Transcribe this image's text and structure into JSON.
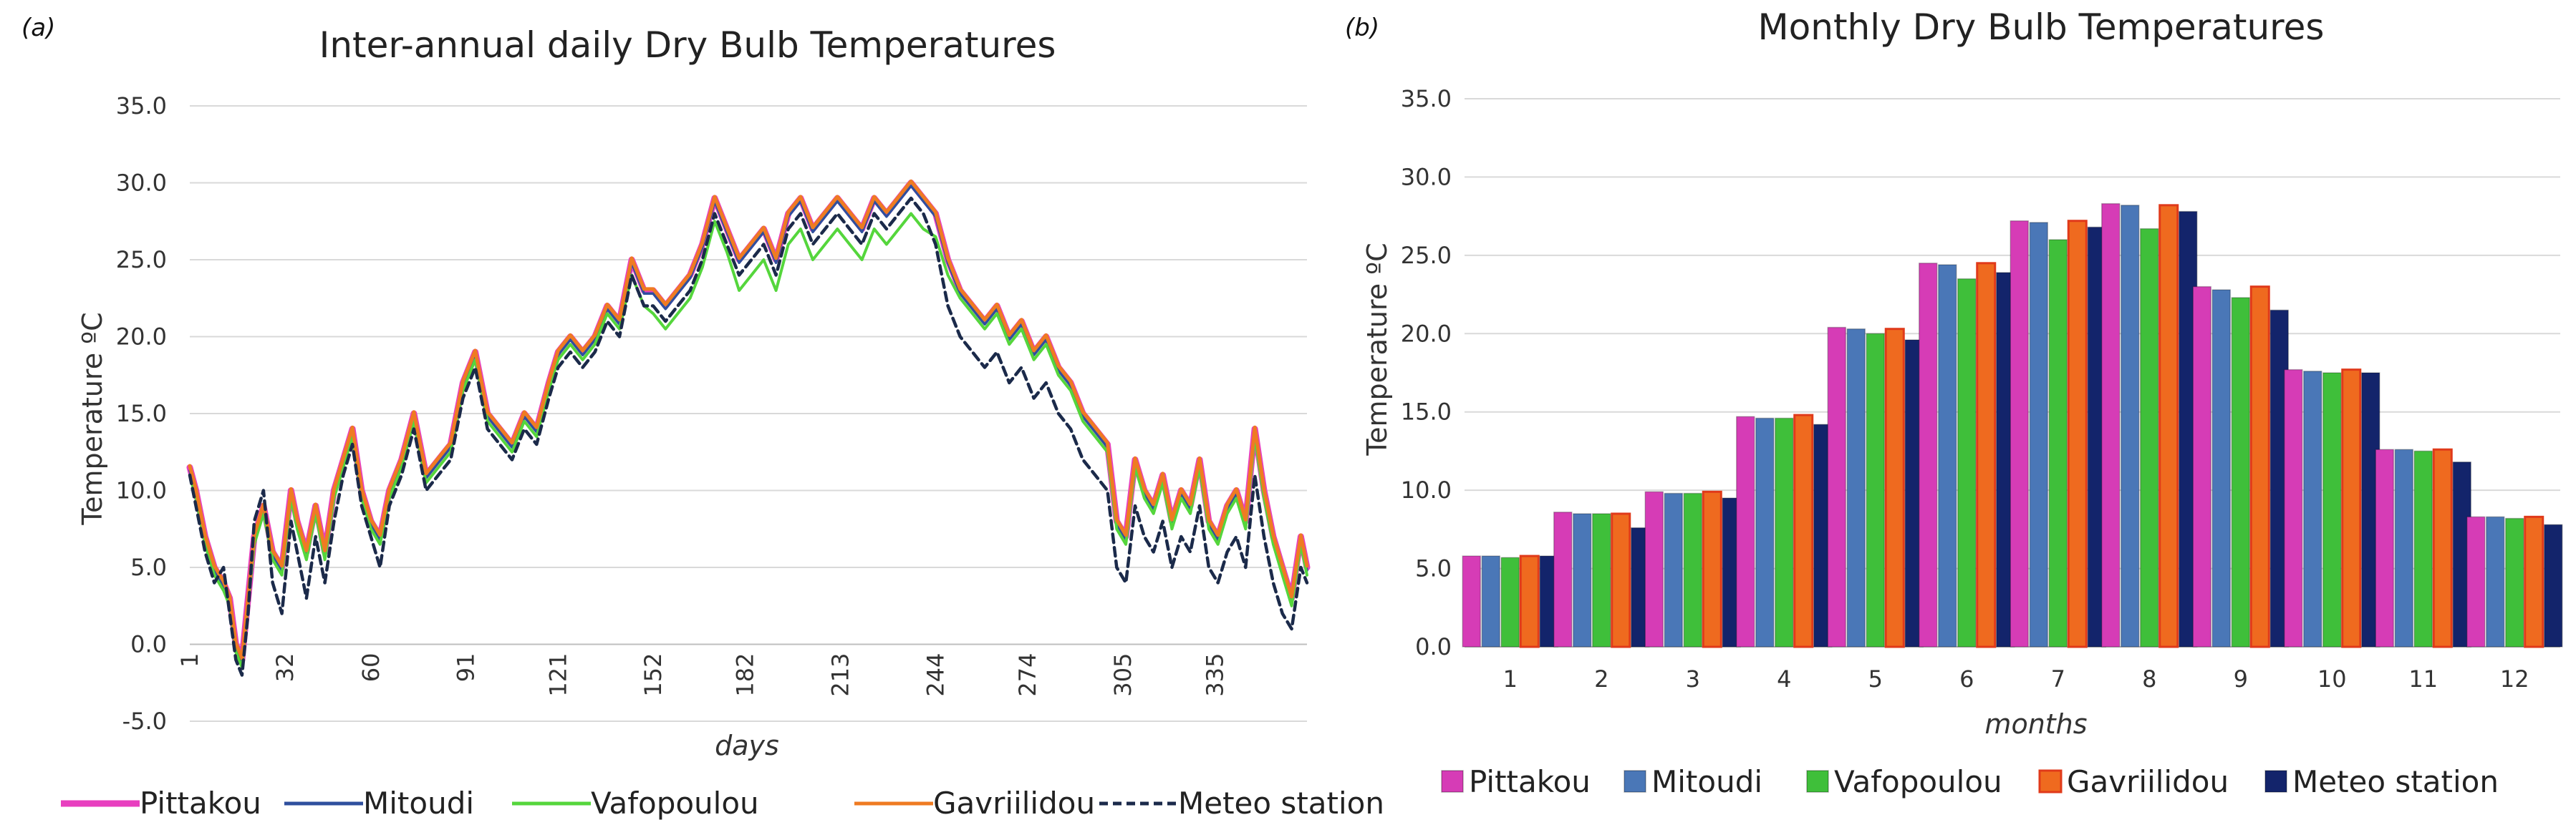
{
  "chart_data": [
    {
      "panel": "(a)",
      "type": "line",
      "title": "Inter-annual daily Dry Bulb Temperatures",
      "xlabel": "days",
      "ylabel": "Temperature ºC",
      "xlim": [
        1,
        365
      ],
      "ylim": [
        -5,
        35
      ],
      "yticks": [
        "-5.0",
        "0.0",
        "5.0",
        "10.0",
        "15.0",
        "20.0",
        "25.0",
        "30.0",
        "35.0"
      ],
      "xticks": [
        "1",
        "32",
        "60",
        "91",
        "121",
        "152",
        "182",
        "213",
        "244",
        "274",
        "305",
        "335"
      ],
      "grid": true,
      "legend": "bottom",
      "x": [
        1,
        3,
        6,
        9,
        12,
        14,
        16,
        18,
        20,
        22,
        25,
        28,
        31,
        34,
        36,
        39,
        42,
        45,
        48,
        51,
        54,
        57,
        60,
        63,
        66,
        70,
        74,
        78,
        82,
        86,
        90,
        94,
        98,
        102,
        106,
        110,
        114,
        118,
        121,
        125,
        129,
        133,
        137,
        141,
        145,
        149,
        152,
        156,
        160,
        164,
        168,
        172,
        176,
        180,
        184,
        188,
        192,
        196,
        200,
        204,
        208,
        212,
        216,
        220,
        224,
        228,
        232,
        236,
        240,
        244,
        248,
        252,
        256,
        260,
        264,
        268,
        272,
        276,
        280,
        284,
        288,
        292,
        296,
        300,
        303,
        306,
        309,
        312,
        315,
        318,
        321,
        324,
        327,
        330,
        333,
        336,
        339,
        342,
        345,
        348,
        351,
        354,
        357,
        360,
        363,
        365
      ],
      "series": [
        {
          "name": "Pittakou",
          "color": "#e83fbf",
          "values": [
            11.5,
            10,
            7,
            5,
            4,
            3,
            0,
            -1,
            3,
            7,
            9,
            6,
            5,
            10,
            8,
            6,
            9,
            6,
            10,
            12,
            14,
            10,
            8,
            7,
            10,
            12,
            15,
            11,
            12,
            13,
            17,
            19,
            15,
            14,
            13,
            15,
            14,
            17,
            19,
            20,
            19,
            20,
            22,
            21,
            25,
            23,
            23,
            22,
            23,
            24,
            26,
            29,
            27,
            25,
            26,
            27,
            25,
            28,
            29,
            27,
            28,
            29,
            28,
            27,
            29,
            28,
            29,
            30,
            29,
            28,
            25,
            23,
            22,
            21,
            22,
            20,
            21,
            19,
            20,
            18,
            17,
            15,
            14,
            13,
            8,
            7,
            12,
            10,
            9,
            11,
            8,
            10,
            9,
            12,
            8,
            7,
            9,
            10,
            8,
            14,
            10,
            7,
            5,
            3,
            7,
            5
          ]
        },
        {
          "name": "Mitoudi",
          "color": "#2f4f9e",
          "values": [
            11.3,
            9.8,
            6.8,
            4.8,
            3.8,
            2.8,
            -0.2,
            -1.2,
            2.8,
            6.8,
            8.8,
            5.8,
            4.8,
            9.8,
            7.8,
            5.8,
            8.8,
            5.8,
            9.8,
            11.8,
            13.8,
            9.8,
            7.8,
            6.8,
            9.8,
            11.8,
            14.8,
            10.8,
            11.8,
            12.8,
            16.8,
            18.8,
            14.8,
            13.8,
            12.8,
            14.8,
            13.8,
            16.8,
            18.8,
            19.8,
            18.8,
            19.8,
            21.8,
            20.8,
            24.8,
            22.8,
            22.8,
            21.8,
            22.8,
            23.8,
            25.8,
            28.8,
            26.8,
            24.8,
            25.8,
            26.8,
            24.8,
            27.8,
            28.8,
            26.8,
            27.8,
            28.8,
            27.8,
            26.8,
            28.8,
            27.8,
            28.8,
            29.8,
            28.8,
            27.8,
            24.8,
            22.8,
            21.8,
            20.8,
            21.8,
            19.8,
            20.8,
            18.8,
            19.8,
            17.8,
            16.8,
            14.8,
            13.8,
            12.8,
            7.8,
            6.8,
            11.8,
            9.8,
            8.8,
            10.8,
            7.8,
            9.8,
            8.8,
            11.8,
            7.8,
            6.8,
            8.8,
            9.8,
            7.8,
            13.8,
            9.8,
            6.8,
            4.8,
            2.8,
            6.8,
            4.8
          ]
        },
        {
          "name": "Vafopoulou",
          "color": "#55d63c",
          "values": [
            11,
            9.5,
            6.5,
            4.5,
            3.5,
            2.5,
            -0.5,
            -1.5,
            2.5,
            6.5,
            8.5,
            5.5,
            4.5,
            9.5,
            7.5,
            5.5,
            8.5,
            5.5,
            9.5,
            11.5,
            13.5,
            9.5,
            7.5,
            6.5,
            9.5,
            11.5,
            14.5,
            10.5,
            11.5,
            12.5,
            16.5,
            18.5,
            14.5,
            13.5,
            12.5,
            14.5,
            13.5,
            16.5,
            18.5,
            19.5,
            18.5,
            19.5,
            21.5,
            20.5,
            24,
            22,
            21.5,
            20.5,
            21.5,
            22.5,
            24.5,
            27.5,
            25.5,
            23,
            24,
            25,
            23,
            26,
            27,
            25,
            26,
            27,
            26,
            25,
            27,
            26,
            27,
            28,
            27,
            26.5,
            24,
            22.5,
            21.5,
            20.5,
            21.5,
            19.5,
            20.5,
            18.5,
            19.5,
            17.5,
            16.5,
            14.5,
            13.5,
            12.5,
            7.5,
            6.5,
            11.5,
            9.5,
            8.5,
            10.5,
            7.5,
            9.5,
            8.5,
            11.5,
            7.5,
            6.5,
            8.5,
            9.5,
            7.5,
            13.5,
            9.5,
            6.5,
            4.5,
            2.5,
            6.5,
            4.5
          ]
        },
        {
          "name": "Gavriilidou",
          "color": "#ef7b22",
          "values": [
            11.6,
            10.1,
            7.1,
            5.1,
            4.1,
            3.1,
            0.1,
            -0.9,
            3.1,
            7.1,
            9.1,
            6.1,
            5.1,
            10.1,
            8.1,
            6.1,
            9.1,
            6.1,
            10.1,
            12.1,
            14.1,
            10.1,
            8.1,
            7.1,
            10.1,
            12.1,
            15.1,
            11.1,
            12.1,
            13.1,
            17.1,
            19.1,
            15.1,
            14.1,
            13.1,
            15.1,
            14.1,
            17.1,
            19.1,
            20.1,
            19.1,
            20.1,
            22.1,
            21.1,
            25.1,
            23.1,
            23.1,
            22.1,
            23.1,
            24.1,
            26.1,
            29.1,
            27.1,
            25.1,
            26.1,
            27.1,
            25.1,
            28.1,
            29.1,
            27.1,
            28.1,
            29.1,
            28.1,
            27.1,
            29.1,
            28.1,
            29.1,
            30.1,
            29.1,
            28.1,
            25.1,
            23.1,
            22.1,
            21.1,
            22.1,
            20.1,
            21.1,
            19.1,
            20.1,
            18.1,
            17.1,
            15.1,
            14.1,
            13.1,
            8.1,
            7.1,
            12.1,
            10.1,
            9.1,
            11.1,
            8.1,
            10.1,
            9.1,
            12.1,
            8.1,
            7.1,
            9.1,
            10.1,
            8.1,
            14.1,
            10.1,
            7.1,
            5.1,
            3.1,
            7.1,
            5.1
          ]
        },
        {
          "name": "Meteo station",
          "color": "#1b2a4a",
          "dashed": true,
          "values": [
            11,
            9,
            6,
            4,
            5,
            2,
            -1,
            -2,
            2,
            8,
            10,
            4,
            2,
            8,
            6,
            3,
            7,
            4,
            8,
            11,
            13,
            9,
            7,
            5,
            9,
            11,
            14,
            10,
            11,
            12,
            16,
            18,
            14,
            13,
            12,
            14,
            13,
            16,
            18,
            19,
            18,
            19,
            21,
            20,
            24,
            22,
            22,
            21,
            22,
            23,
            25,
            28,
            26,
            24,
            25,
            26,
            24,
            27,
            28,
            26,
            27,
            28,
            27,
            26,
            28,
            27,
            28,
            29,
            28,
            26,
            22,
            20,
            19,
            18,
            19,
            17,
            18,
            16,
            17,
            15,
            14,
            12,
            11,
            10,
            5,
            4,
            9,
            7,
            6,
            8,
            5,
            7,
            6,
            9,
            5,
            4,
            6,
            7,
            5,
            11,
            7,
            4,
            2,
            1,
            5,
            4
          ]
        }
      ]
    },
    {
      "panel": "(b)",
      "type": "bar",
      "title": "Monthly Dry Bulb Temperatures",
      "xlabel": "months",
      "ylabel": "Temperature ºC",
      "ylim": [
        0,
        35
      ],
      "yticks": [
        "0.0",
        "5.0",
        "10.0",
        "15.0",
        "20.0",
        "25.0",
        "30.0",
        "35.0"
      ],
      "categories": [
        "1",
        "2",
        "3",
        "4",
        "5",
        "6",
        "7",
        "8",
        "9",
        "10",
        "11",
        "12"
      ],
      "grid": true,
      "legend": "bottom",
      "series": [
        {
          "name": "Pittakou",
          "color": "#d63cb6",
          "values": [
            5.8,
            8.6,
            9.9,
            14.7,
            20.4,
            24.5,
            27.2,
            28.3,
            23.0,
            17.7,
            12.6,
            8.3
          ]
        },
        {
          "name": "Mitoudi",
          "color": "#4a77b7",
          "values": [
            5.8,
            8.5,
            9.8,
            14.6,
            20.3,
            24.4,
            27.1,
            28.2,
            22.8,
            17.6,
            12.6,
            8.3
          ]
        },
        {
          "name": "Vafopoulou",
          "color": "#3fbf3a",
          "values": [
            5.7,
            8.5,
            9.8,
            14.6,
            20.0,
            23.5,
            26.0,
            26.7,
            22.3,
            17.5,
            12.5,
            8.2
          ]
        },
        {
          "name": "Gavriilidou",
          "color": "#ef6a1f",
          "values": [
            5.8,
            8.5,
            9.9,
            14.8,
            20.3,
            24.5,
            27.2,
            28.2,
            23.0,
            17.7,
            12.6,
            8.3
          ]
        },
        {
          "name": "Meteo station",
          "color": "#13246b",
          "values": [
            5.8,
            7.6,
            9.5,
            14.2,
            19.6,
            23.9,
            26.8,
            27.8,
            21.5,
            17.5,
            11.8,
            7.8
          ]
        }
      ]
    }
  ]
}
